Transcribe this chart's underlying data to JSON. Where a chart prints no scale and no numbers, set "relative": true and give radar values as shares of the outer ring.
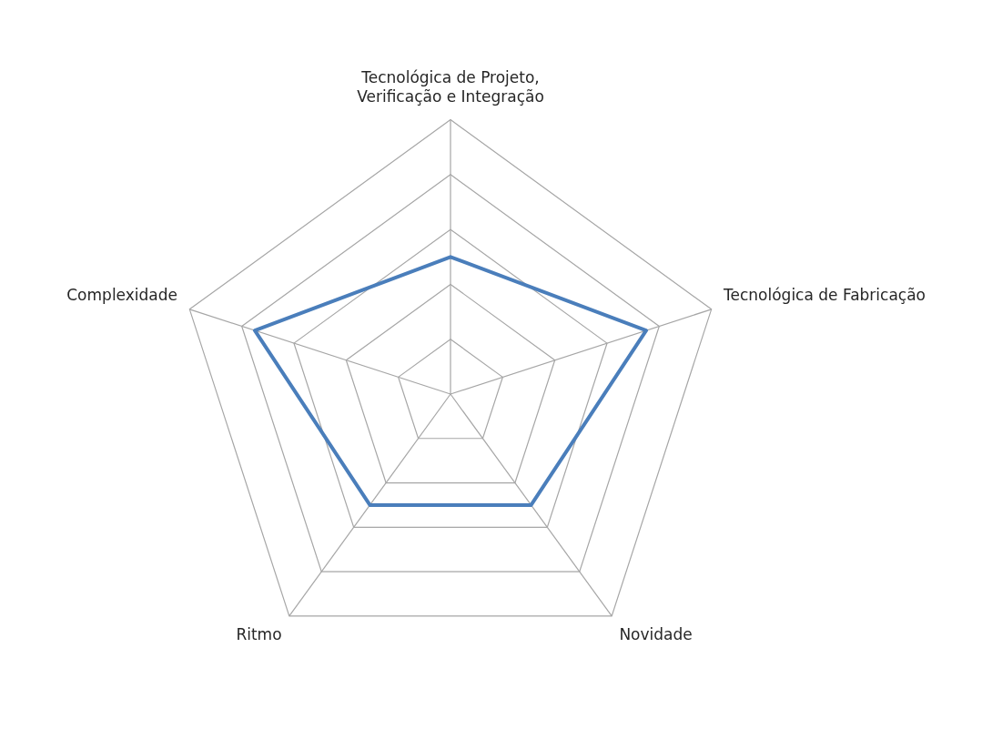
{
  "chart_data": {
    "type": "radar",
    "relative": true,
    "grid": true,
    "legend": false,
    "marker": "none",
    "categories": [
      "Tecnológica de Projeto, Verificação e Integração",
      "Tecnológica de Fabricação",
      "Novidade",
      "Ritmo",
      "Complexidade"
    ],
    "series": [
      {
        "color": "#4a7ebb",
        "values": [
          0.5,
          0.75,
          0.5,
          0.5,
          0.75
        ]
      }
    ]
  }
}
